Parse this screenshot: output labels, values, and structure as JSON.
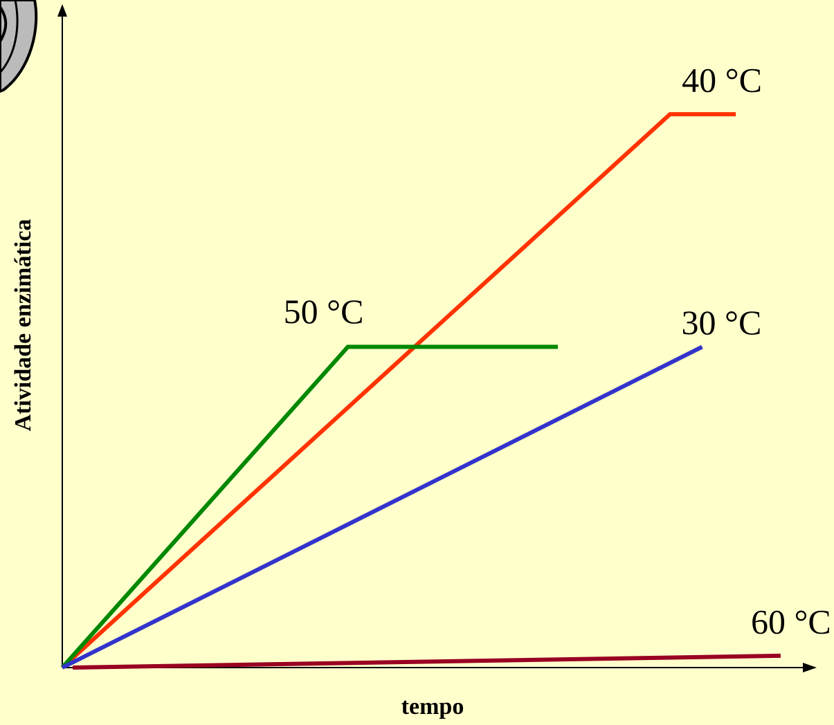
{
  "chart_data": {
    "type": "line",
    "y_label": "Atividade enzimática",
    "x_label": "tempo",
    "xlim": [
      0,
      100
    ],
    "ylim": [
      0,
      100
    ],
    "series": [
      {
        "name": "40 °C",
        "color": "#ff3300",
        "x": [
          0,
          81.3,
          90.1
        ],
        "values": [
          0,
          84.2,
          84.2
        ]
      },
      {
        "name": "50 °C",
        "color": "#008800",
        "x": [
          0,
          38.2,
          66.3
        ],
        "values": [
          0,
          48.8,
          48.8
        ]
      },
      {
        "name": "30 °C",
        "color": "#3333cc",
        "x": [
          0,
          85.6
        ],
        "values": [
          0,
          48.8
        ]
      },
      {
        "name": "60 °C",
        "color": "#990022",
        "x": [
          1.4,
          96.1
        ],
        "values": [
          0,
          1.8
        ]
      }
    ]
  }
}
